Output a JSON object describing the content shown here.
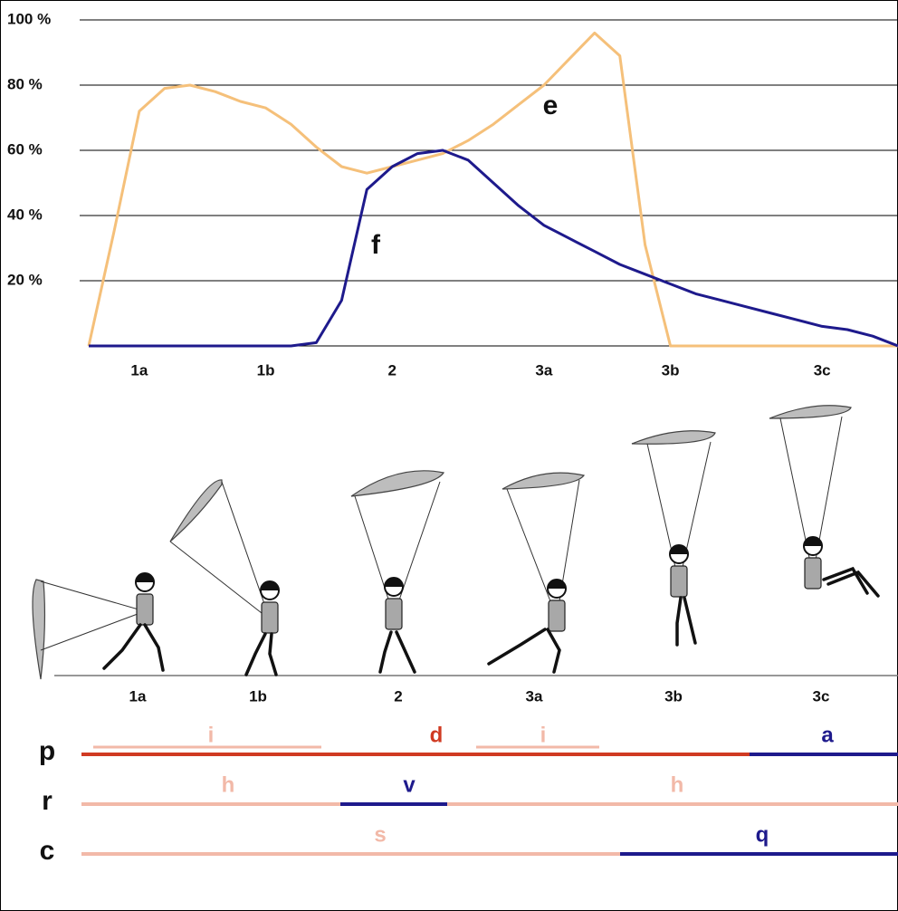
{
  "chart_data": {
    "type": "line",
    "categories": [
      null,
      null,
      "1a",
      null,
      null,
      null,
      null,
      "1b",
      null,
      null,
      null,
      null,
      "2",
      null,
      null,
      null,
      null,
      null,
      "3a",
      null,
      null,
      null,
      null,
      "3b",
      null,
      null,
      null,
      null,
      null,
      "3c",
      null,
      null,
      null
    ],
    "series": [
      {
        "name": "e",
        "color": "#f5c07a",
        "values": [
          0,
          35,
          72,
          79,
          80,
          78,
          75,
          73,
          68,
          61,
          55,
          53,
          55,
          57,
          59,
          63,
          68,
          74,
          80,
          88,
          96,
          89,
          31,
          0,
          0,
          0,
          0,
          0,
          0,
          0,
          0,
          0,
          0
        ]
      },
      {
        "name": "f",
        "color": "#1e1a8c",
        "values": [
          0,
          0,
          0,
          0,
          0,
          0,
          0,
          0,
          0,
          1,
          14,
          48,
          55,
          59,
          60,
          57,
          50,
          43,
          37,
          33,
          29,
          25,
          22,
          19,
          16,
          14,
          12,
          10,
          8,
          6,
          5,
          3,
          0
        ]
      }
    ],
    "ylim": [
      0,
      100
    ],
    "yticks": [
      {
        "value": 20,
        "label": "20 %"
      },
      {
        "value": 40,
        "label": "40 %"
      },
      {
        "value": 60,
        "label": "60 %"
      },
      {
        "value": 80,
        "label": "80 %"
      },
      {
        "value": 100,
        "label": "100 %"
      }
    ],
    "grid": true,
    "figure_labels": [
      "1a",
      "1b",
      "2",
      "3a",
      "3b",
      "3c"
    ],
    "rows": [
      {
        "label": "p",
        "segments": [
          {
            "label": "i",
            "color": "#f2b9a8"
          },
          {
            "label": "d",
            "color": "#d03a22"
          },
          {
            "label": "i",
            "color": "#f2b9a8"
          },
          {
            "label": "a",
            "color": "#1e1a8c"
          }
        ]
      },
      {
        "label": "r",
        "segments": [
          {
            "label": "h",
            "color": "#f2b9a8"
          },
          {
            "label": "v",
            "color": "#1e1a8c"
          },
          {
            "label": "h",
            "color": "#f2b9a8"
          }
        ]
      },
      {
        "label": "c",
        "segments": [
          {
            "label": "s",
            "color": "#f2b9a8"
          },
          {
            "label": "q",
            "color": "#1e1a8c"
          }
        ]
      }
    ]
  }
}
